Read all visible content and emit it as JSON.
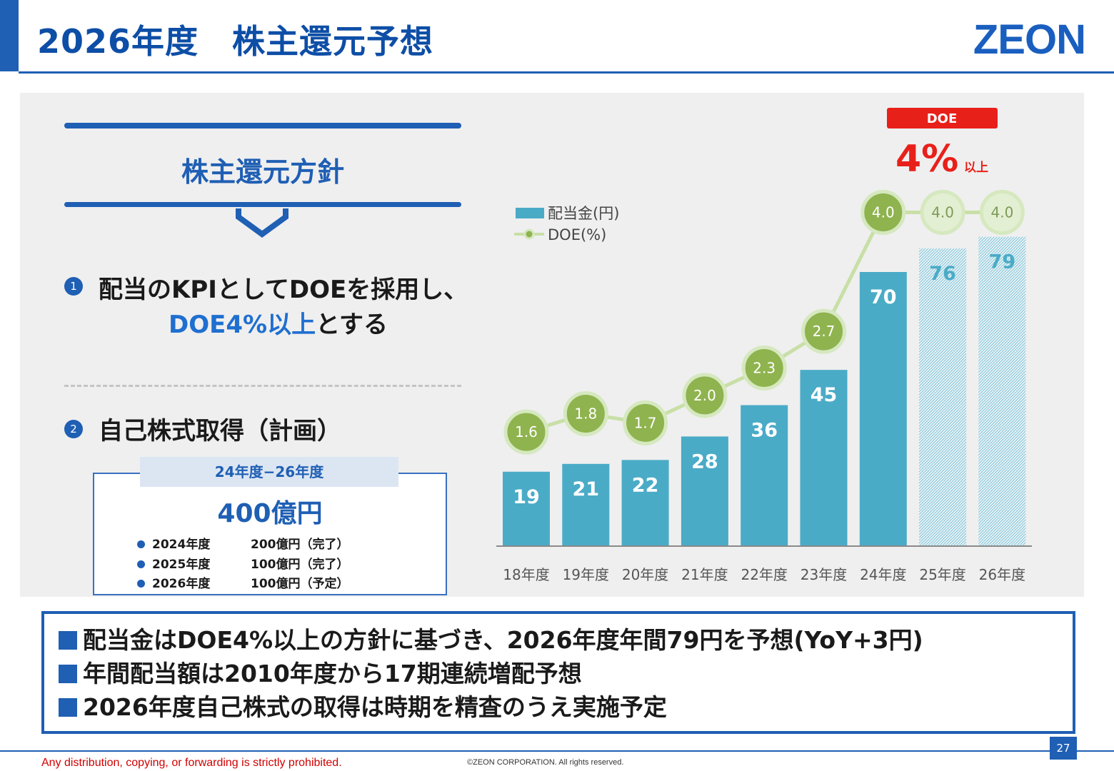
{
  "header": {
    "title": "2026年度　株主還元予想",
    "logo": "ZEON"
  },
  "policy": {
    "title": "株主還元方針",
    "point1": {
      "num": "1",
      "line1": "配当のKPIとしてDOEを採用し、",
      "line2_blue": "DOE4%以上",
      "line2_rest": "とする"
    },
    "point2": {
      "num": "2",
      "text": "自己株式取得（計画）"
    }
  },
  "buyback": {
    "period": "24年度−26年度",
    "total": "400億円",
    "rows": [
      {
        "year": "2024年度",
        "amount": "200億円（完了）"
      },
      {
        "year": "2025年度",
        "amount": "100億円（完了）"
      },
      {
        "year": "2026年度",
        "amount": "100億円（予定）"
      }
    ]
  },
  "chart_data": {
    "type": "bar",
    "categories": [
      "18年度",
      "19年度",
      "20年度",
      "21年度",
      "22年度",
      "23年度",
      "24年度",
      "25年度",
      "26年度"
    ],
    "series": [
      {
        "name": "配当金(円)",
        "type": "bar",
        "values": [
          19,
          21,
          22,
          28,
          36,
          45,
          70,
          76,
          79
        ],
        "forecast_from_index": 7
      },
      {
        "name": "DOE(%)",
        "type": "line",
        "values": [
          1.6,
          1.8,
          1.7,
          2.0,
          2.3,
          2.7,
          4.0,
          4.0,
          4.0
        ],
        "labels": [
          "1.6",
          "1.8",
          "1.7",
          "2.0",
          "2.3",
          "2.7",
          "4.0",
          "4.0",
          "4.0"
        ],
        "forecast_from_index": 7
      }
    ],
    "legend": {
      "position": "top-left",
      "items": [
        "配当金(円)",
        "DOE(%)"
      ]
    },
    "callout": {
      "tag": "DOE",
      "value": "4%",
      "suffix": "以上"
    },
    "colors": {
      "bar": "#4aabc7",
      "bar_label_forecast": "#4aabc7",
      "line": "#c8dfa6",
      "marker": "#8fb34e",
      "marker_ring": "#d5e8bf",
      "forecast_marker": "#e3efd2",
      "callout": "#e8201a"
    }
  },
  "summary": {
    "lines": [
      "配当金はDOE4%以上の方針に基づき、2026年度年間79円を予想(YoY+3円)",
      "年間配当額は2010年度から17期連続増配予想",
      "2026年度自己株式の取得は時期を精査のうえ実施予定"
    ]
  },
  "footer": {
    "notice": "Any distribution, copying, or forwarding is strictly prohibited.",
    "copyright": "©ZEON CORPORATION. All rights reserved.",
    "page": "27"
  }
}
